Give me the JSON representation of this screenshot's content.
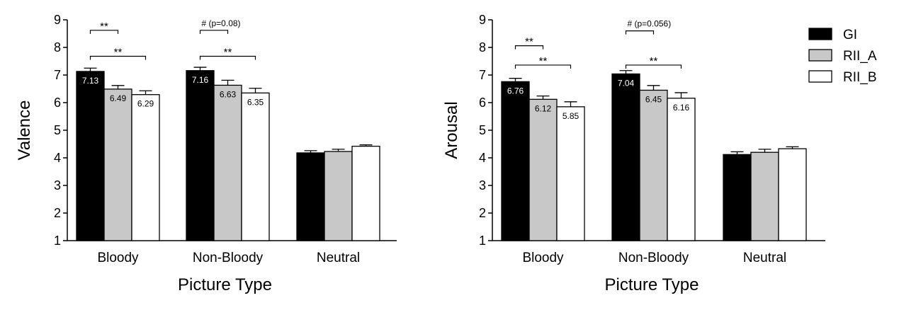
{
  "legend": {
    "entries": [
      {
        "name": "GI",
        "color": "#000000"
      },
      {
        "name": "RII_A",
        "color": "#c8c8c8"
      },
      {
        "name": "RII_B",
        "color": "#ffffff"
      }
    ],
    "placement": "top-right"
  },
  "chart_data": [
    {
      "type": "bar",
      "title": "",
      "xlabel": "Picture Type",
      "ylabel": "Valence",
      "ylim": [
        1,
        9
      ],
      "yticks": [
        "1",
        "2",
        "3",
        "4",
        "5",
        "6",
        "7",
        "8",
        "9"
      ],
      "categories": [
        "Bloody",
        "Non-Bloody",
        "Neutral"
      ],
      "series": [
        {
          "name": "GI",
          "values": [
            7.13,
            7.16,
            4.18
          ],
          "errors": [
            0.12,
            0.12,
            0.08
          ],
          "labels": [
            "7.13",
            "7.16",
            ""
          ]
        },
        {
          "name": "RII_A",
          "values": [
            6.49,
            6.63,
            4.23
          ],
          "errors": [
            0.13,
            0.18,
            0.08
          ],
          "labels": [
            "6.49",
            "6.63",
            ""
          ]
        },
        {
          "name": "RII_B",
          "values": [
            6.29,
            6.35,
            4.42
          ],
          "errors": [
            0.14,
            0.17,
            0.05
          ],
          "labels": [
            "6.29",
            "6.35",
            ""
          ]
        }
      ],
      "annotations": [
        {
          "category": 0,
          "from": 0,
          "to": 1,
          "level": 8.62,
          "text": "**"
        },
        {
          "category": 0,
          "from": 0,
          "to": 2,
          "level": 7.68,
          "text": "**"
        },
        {
          "category": 1,
          "from": 0,
          "to": 1,
          "level": 8.62,
          "text": "# (p=0.08)"
        },
        {
          "category": 1,
          "from": 0,
          "to": 2,
          "level": 7.68,
          "text": "**"
        }
      ]
    },
    {
      "type": "bar",
      "title": "",
      "xlabel": "Picture Type",
      "ylabel": "Arousal",
      "ylim": [
        1,
        9
      ],
      "yticks": [
        "1",
        "2",
        "3",
        "4",
        "5",
        "6",
        "7",
        "8",
        "9"
      ],
      "categories": [
        "Bloody",
        "Non-Bloody",
        "Neutral"
      ],
      "series": [
        {
          "name": "GI",
          "values": [
            6.76,
            7.04,
            4.12
          ],
          "errors": [
            0.12,
            0.12,
            0.1
          ],
          "labels": [
            "6.76",
            "7.04",
            ""
          ]
        },
        {
          "name": "RII_A",
          "values": [
            6.12,
            6.45,
            4.2
          ],
          "errors": [
            0.12,
            0.17,
            0.11
          ],
          "labels": [
            "6.12",
            "6.45",
            ""
          ]
        },
        {
          "name": "RII_B",
          "values": [
            5.85,
            6.16,
            4.33
          ],
          "errors": [
            0.18,
            0.2,
            0.07
          ],
          "labels": [
            "5.85",
            "6.16",
            ""
          ]
        }
      ],
      "annotations": [
        {
          "category": 0,
          "from": 0,
          "to": 1,
          "level": 8.06,
          "text": "**"
        },
        {
          "category": 0,
          "from": 0,
          "to": 2,
          "level": 7.36,
          "text": "**"
        },
        {
          "category": 1,
          "from": 0,
          "to": 1,
          "level": 8.6,
          "text": "# (p=0.056)"
        },
        {
          "category": 1,
          "from": 0,
          "to": 2,
          "level": 7.36,
          "text": "**"
        }
      ]
    }
  ]
}
